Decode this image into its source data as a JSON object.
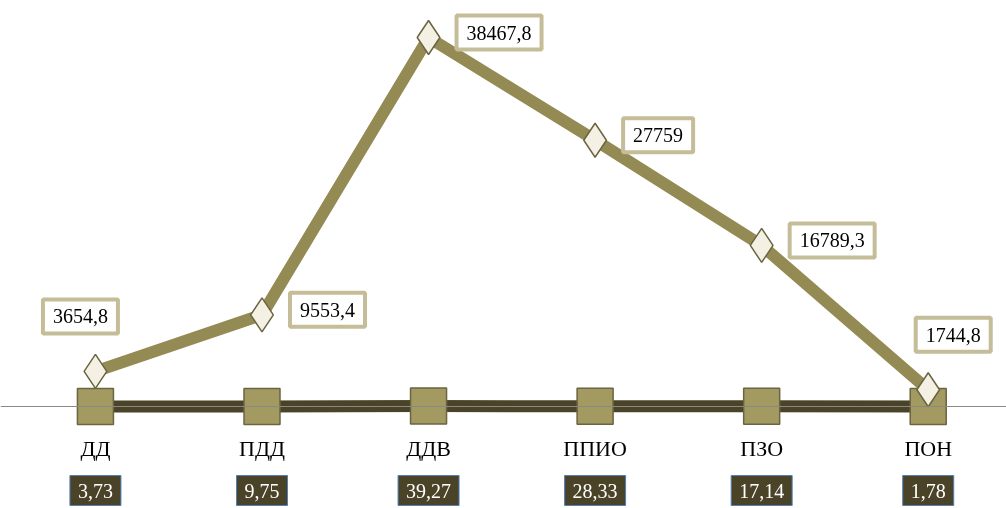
{
  "chart_data": {
    "type": "line",
    "categories": [
      "ДД",
      "ПДД",
      "ДДВ",
      "ППИО",
      "ПЗО",
      "ПОН"
    ],
    "series": [
      {
        "color": "#948a54",
        "marker": "diamond",
        "values": [
          3654.8,
          9553.4,
          38467.8,
          27759,
          16789.3,
          1744.8
        ],
        "value_labels": [
          "3654,8",
          "9553,4",
          "38467,8",
          "27759",
          "16789,3",
          "1744,8"
        ]
      },
      {
        "color": "#4a4328",
        "marker": "square",
        "values": [
          3.73,
          9.75,
          39.27,
          28.33,
          17.14,
          1.78
        ],
        "value_labels": [
          "3,73",
          "9,75",
          "39,27",
          "28,33",
          "17,14",
          "1,78"
        ]
      }
    ],
    "grid": false
  }
}
